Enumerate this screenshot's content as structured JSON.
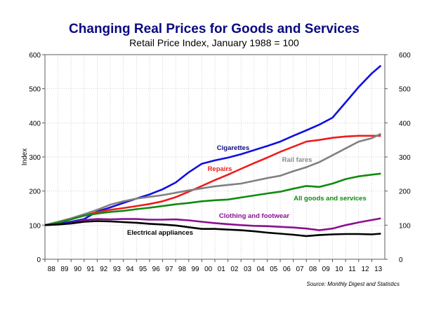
{
  "chart_data": {
    "type": "line",
    "title": "Changing Real Prices for Goods and Services",
    "subtitle": "Retail Price Index, January 1988 = 100",
    "ylabel": "Index",
    "xlabel": "",
    "ylim": [
      0,
      600
    ],
    "yticks": [
      0,
      100,
      200,
      300,
      400,
      500,
      600
    ],
    "xlim": [
      1988,
      2014
    ],
    "xtick_labels": [
      "88",
      "89",
      "90",
      "91",
      "92",
      "93",
      "94",
      "95",
      "96",
      "97",
      "98",
      "99",
      "00",
      "01",
      "02",
      "03",
      "04",
      "05",
      "06",
      "07",
      "08",
      "09",
      "10",
      "11",
      "12",
      "13"
    ],
    "grid": true,
    "source": "Source: Monthly Digest and Statistics",
    "x": [
      1988,
      1989,
      1990,
      1991,
      1992,
      1993,
      1994,
      1995,
      1996,
      1997,
      1998,
      1999,
      2000,
      2001,
      2002,
      2003,
      2004,
      2005,
      2006,
      2007,
      2008,
      2009,
      2010,
      2011,
      2012,
      2013,
      2013.7
    ],
    "series": [
      {
        "name": "Cigarettes",
        "color": "#1010e0",
        "label_color": "#0a0a80",
        "values": [
          100,
          104,
          110,
          118,
          140,
          152,
          165,
          178,
          190,
          205,
          225,
          255,
          280,
          290,
          298,
          308,
          320,
          332,
          345,
          362,
          378,
          395,
          415,
          460,
          505,
          545,
          568
        ]
      },
      {
        "name": "Repairs",
        "color": "#ee1c1c",
        "label_color": "#ee1c1c",
        "values": [
          100,
          108,
          118,
          128,
          138,
          145,
          150,
          156,
          162,
          170,
          182,
          198,
          215,
          232,
          248,
          265,
          282,
          298,
          315,
          330,
          345,
          350,
          356,
          360,
          362,
          362,
          362
        ]
      },
      {
        "name": "Rail fares",
        "color": "#808080",
        "label_color": "#8a8a8a",
        "values": [
          100,
          110,
          120,
          132,
          145,
          160,
          170,
          178,
          183,
          188,
          195,
          202,
          208,
          214,
          218,
          222,
          230,
          238,
          245,
          258,
          270,
          285,
          305,
          325,
          345,
          355,
          368
        ]
      },
      {
        "name": "All goods and services",
        "color": "#108a10",
        "label_color": "#108a10",
        "values": [
          100,
          107,
          117,
          128,
          134,
          139,
          142,
          147,
          151,
          156,
          161,
          165,
          170,
          173,
          175,
          181,
          187,
          193,
          198,
          207,
          215,
          212,
          222,
          235,
          243,
          248,
          251
        ]
      },
      {
        "name": "Clothing and footwear",
        "color": "#8a1090",
        "label_color": "#8a1090",
        "values": [
          100,
          103,
          106,
          115,
          118,
          117,
          118,
          118,
          116,
          116,
          117,
          114,
          110,
          106,
          103,
          100,
          98,
          97,
          95,
          93,
          90,
          85,
          90,
          100,
          108,
          115,
          120
        ]
      },
      {
        "name": "Electrical appliances",
        "color": "#000000",
        "label_color": "#000000",
        "values": [
          100,
          102,
          105,
          110,
          112,
          111,
          109,
          107,
          104,
          102,
          99,
          94,
          89,
          89,
          87,
          85,
          82,
          78,
          75,
          72,
          68,
          71,
          73,
          74,
          74,
          73,
          75
        ]
      }
    ]
  }
}
